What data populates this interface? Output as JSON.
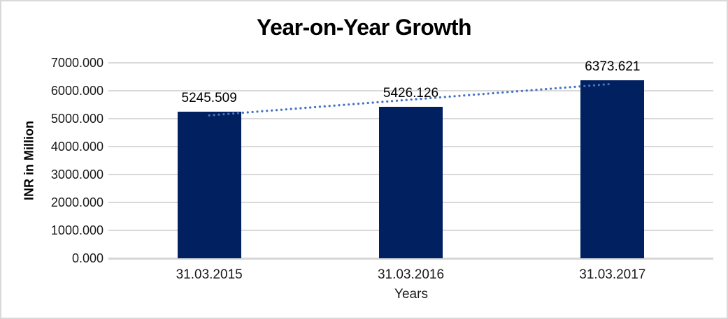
{
  "chart_data": {
    "type": "bar",
    "title": "Year-on-Year Growth",
    "categories": [
      "31.03.2015",
      "31.03.2016",
      "31.03.2017"
    ],
    "values": [
      5245.509,
      5426.126,
      6373.621
    ],
    "data_labels": [
      "5245.509",
      "5426.126",
      "6373.621"
    ],
    "xlabel": "Years",
    "ylabel": "INR in Million",
    "ylim": [
      0,
      7000
    ],
    "ytick_step": 1000,
    "ytick_labels": [
      "0.000",
      "1000.000",
      "2000.000",
      "3000.000",
      "4000.000",
      "5000.000",
      "6000.000",
      "7000.000"
    ],
    "grid": "horizontal-only",
    "legend": "none",
    "trendline": {
      "type": "linear",
      "style": "dotted",
      "color": "#4472C4"
    },
    "colors": {
      "bar": "#002060",
      "trendline": "#4472C4",
      "gridline": "#D9D9D9",
      "axis_line": "#D6D6D6",
      "text": "#000000",
      "background": "#FFFFFF",
      "border": "#D9D9D9"
    }
  }
}
